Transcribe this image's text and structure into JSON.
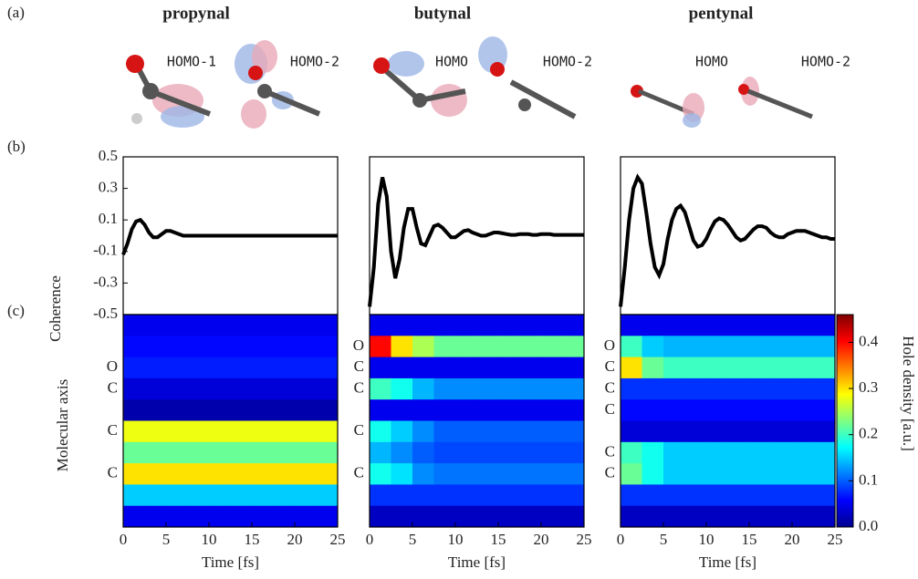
{
  "panel_labels": [
    "(a)",
    "(b)",
    "(c)"
  ],
  "molecules": [
    {
      "name": "propynal",
      "orbitals": [
        "HOMO-1",
        "HOMO-2"
      ]
    },
    {
      "name": "butynal",
      "orbitals": [
        "HOMO",
        "HOMO-2"
      ]
    },
    {
      "name": "pentynal",
      "orbitals": [
        "HOMO",
        "HOMO-2"
      ]
    }
  ],
  "chart_data": [
    {
      "type": "line",
      "ylabel": "Coherence",
      "color": "#000000",
      "xlim": [
        0,
        25
      ],
      "ylim": [
        -0.5,
        0.5
      ],
      "yticks": [
        0.5,
        0.3,
        0.1,
        -0.1,
        -0.3,
        -0.5
      ],
      "x": [
        0,
        0.5,
        1,
        1.5,
        2,
        2.5,
        3,
        3.5,
        4,
        4.5,
        5,
        5.5,
        6,
        6.5,
        7,
        7.5,
        8,
        8.5,
        9,
        9.5,
        10,
        10.5,
        11,
        11.5,
        12,
        12.5,
        13,
        13.5,
        14,
        14.5,
        15,
        15.5,
        16,
        16.5,
        17,
        17.5,
        18,
        18.5,
        19,
        19.5,
        20,
        20.5,
        21,
        21.5,
        22,
        22.5,
        23,
        23.5,
        24,
        24.5,
        25
      ],
      "values": [
        -0.12,
        -0.05,
        0.04,
        0.09,
        0.1,
        0.07,
        0.02,
        -0.01,
        -0.01,
        0.01,
        0.03,
        0.03,
        0.02,
        0.01,
        0,
        0,
        0,
        0,
        0,
        0,
        0,
        0,
        0,
        0,
        0,
        0,
        0,
        0,
        0,
        0,
        0,
        0,
        0,
        0,
        0,
        0,
        0,
        0,
        0,
        0,
        0,
        0,
        0,
        0,
        0,
        0,
        0,
        0,
        0,
        0,
        0
      ]
    },
    {
      "type": "line",
      "color": "#000000",
      "xlim": [
        0,
        25
      ],
      "ylim": [
        -0.5,
        0.5
      ],
      "x": [
        0,
        0.5,
        1,
        1.5,
        2,
        2.5,
        3,
        3.5,
        4,
        4.5,
        5,
        5.5,
        6,
        6.5,
        7,
        7.5,
        8,
        8.5,
        9,
        9.5,
        10,
        10.5,
        11,
        11.5,
        12,
        12.5,
        13,
        13.5,
        14,
        14.5,
        15,
        15.5,
        16,
        16.5,
        17,
        17.5,
        18,
        18.5,
        19,
        19.5,
        20,
        20.5,
        21,
        21.5,
        22,
        22.5,
        23,
        23.5,
        24,
        24.5,
        25
      ],
      "values": [
        -0.45,
        -0.2,
        0.2,
        0.37,
        0.25,
        -0.1,
        -0.27,
        -0.15,
        0.05,
        0.17,
        0.17,
        0.05,
        -0.05,
        -0.06,
        0,
        0.06,
        0.07,
        0.05,
        0.02,
        -0.01,
        -0.01,
        0.01,
        0.03,
        0.035,
        0.02,
        0.01,
        0,
        0,
        0.01,
        0.02,
        0.02,
        0.015,
        0.01,
        0.005,
        0.005,
        0.01,
        0.01,
        0.01,
        0.005,
        0.005,
        0.01,
        0.01,
        0.01,
        0.005,
        0.005,
        0.005,
        0.005,
        0.005,
        0.005,
        0.005,
        0.005
      ]
    },
    {
      "type": "line",
      "color": "#000000",
      "xlim": [
        0,
        25
      ],
      "ylim": [
        -0.5,
        0.5
      ],
      "x": [
        0,
        0.5,
        1,
        1.5,
        2,
        2.5,
        3,
        3.5,
        4,
        4.5,
        5,
        5.5,
        6,
        6.5,
        7,
        7.5,
        8,
        8.5,
        9,
        9.5,
        10,
        10.5,
        11,
        11.5,
        12,
        12.5,
        13,
        13.5,
        14,
        14.5,
        15,
        15.5,
        16,
        16.5,
        17,
        17.5,
        18,
        18.5,
        19,
        19.5,
        20,
        20.5,
        21,
        21.5,
        22,
        22.5,
        23,
        23.5,
        24,
        24.5,
        25
      ],
      "values": [
        -0.45,
        -0.2,
        0.1,
        0.3,
        0.37,
        0.33,
        0.15,
        -0.05,
        -0.2,
        -0.25,
        -0.18,
        -0.02,
        0.1,
        0.17,
        0.19,
        0.15,
        0.06,
        -0.03,
        -0.07,
        -0.06,
        -0.02,
        0.04,
        0.09,
        0.11,
        0.1,
        0.07,
        0.03,
        -0.01,
        -0.03,
        -0.02,
        0.01,
        0.04,
        0.06,
        0.06,
        0.05,
        0.02,
        0,
        -0.01,
        -0.01,
        0.01,
        0.02,
        0.03,
        0.03,
        0.03,
        0.02,
        0.01,
        0,
        -0.01,
        -0.01,
        -0.02,
        -0.02
      ]
    },
    {
      "type": "heatmap",
      "ylabel": "Molecular axis",
      "xlabel": "Time [fs]",
      "xlim": [
        0,
        25
      ],
      "xticks": [
        0,
        5,
        10,
        15,
        20,
        25
      ],
      "clim": [
        0,
        0.46
      ],
      "xbins": [
        0,
        2.5,
        5,
        7.5,
        10,
        12.5,
        15,
        17.5,
        20,
        22.5,
        25
      ],
      "rows": [
        null,
        null,
        "O",
        "C",
        null,
        "C",
        null,
        "C",
        null,
        null
      ],
      "z": [
        [
          0.05,
          0.05,
          0.05,
          0.05,
          0.05,
          0.05,
          0.05,
          0.05,
          0.05,
          0.05
        ],
        [
          0.06,
          0.06,
          0.06,
          0.06,
          0.06,
          0.06,
          0.06,
          0.06,
          0.06,
          0.06
        ],
        [
          0.07,
          0.07,
          0.07,
          0.07,
          0.07,
          0.07,
          0.07,
          0.07,
          0.07,
          0.07
        ],
        [
          0.04,
          0.04,
          0.04,
          0.04,
          0.04,
          0.04,
          0.04,
          0.04,
          0.04,
          0.04
        ],
        [
          0.02,
          0.02,
          0.02,
          0.02,
          0.02,
          0.02,
          0.02,
          0.02,
          0.02,
          0.02
        ],
        [
          0.28,
          0.28,
          0.28,
          0.28,
          0.28,
          0.28,
          0.28,
          0.28,
          0.28,
          0.28
        ],
        [
          0.22,
          0.22,
          0.22,
          0.22,
          0.22,
          0.22,
          0.22,
          0.22,
          0.22,
          0.22
        ],
        [
          0.3,
          0.3,
          0.3,
          0.3,
          0.3,
          0.3,
          0.3,
          0.3,
          0.3,
          0.3
        ],
        [
          0.15,
          0.15,
          0.15,
          0.15,
          0.15,
          0.15,
          0.15,
          0.15,
          0.15,
          0.15
        ],
        [
          0.05,
          0.05,
          0.05,
          0.05,
          0.05,
          0.05,
          0.05,
          0.05,
          0.05,
          0.05
        ]
      ]
    },
    {
      "type": "heatmap",
      "xlabel": "Time [fs]",
      "xlim": [
        0,
        25
      ],
      "xticks": [
        0,
        5,
        10,
        15,
        20,
        25
      ],
      "clim": [
        0,
        0.46
      ],
      "xbins": [
        0,
        2.5,
        5,
        7.5,
        10,
        12.5,
        15,
        17.5,
        20,
        22.5,
        25
      ],
      "rows": [
        null,
        "O",
        "C",
        "C",
        null,
        "C",
        null,
        "C",
        null,
        null
      ],
      "z": [
        [
          0.05,
          0.05,
          0.05,
          0.05,
          0.05,
          0.05,
          0.05,
          0.05,
          0.05,
          0.05
        ],
        [
          0.4,
          0.3,
          0.25,
          0.22,
          0.22,
          0.22,
          0.22,
          0.22,
          0.22,
          0.22
        ],
        [
          0.05,
          0.05,
          0.05,
          0.05,
          0.05,
          0.05,
          0.05,
          0.05,
          0.05,
          0.05
        ],
        [
          0.2,
          0.18,
          0.14,
          0.12,
          0.12,
          0.12,
          0.12,
          0.12,
          0.12,
          0.12
        ],
        [
          0.05,
          0.05,
          0.05,
          0.05,
          0.05,
          0.05,
          0.05,
          0.05,
          0.05,
          0.05
        ],
        [
          0.18,
          0.15,
          0.12,
          0.1,
          0.1,
          0.1,
          0.1,
          0.1,
          0.1,
          0.1
        ],
        [
          0.14,
          0.12,
          0.1,
          0.09,
          0.09,
          0.09,
          0.09,
          0.09,
          0.09,
          0.09
        ],
        [
          0.18,
          0.16,
          0.12,
          0.11,
          0.11,
          0.11,
          0.11,
          0.11,
          0.11,
          0.11
        ],
        [
          0.08,
          0.08,
          0.08,
          0.08,
          0.08,
          0.08,
          0.08,
          0.08,
          0.08,
          0.08
        ],
        [
          0.03,
          0.03,
          0.03,
          0.03,
          0.03,
          0.03,
          0.03,
          0.03,
          0.03,
          0.03
        ]
      ]
    },
    {
      "type": "heatmap",
      "xlabel": "Time [fs]",
      "xlim": [
        0,
        25
      ],
      "xticks": [
        0,
        5,
        10,
        15,
        20,
        25
      ],
      "clim": [
        0,
        0.46
      ],
      "xbins": [
        0,
        2.5,
        5,
        7.5,
        10,
        12.5,
        15,
        17.5,
        20,
        22.5,
        25
      ],
      "rows": [
        null,
        "O",
        "C",
        "C",
        "C",
        null,
        "C",
        "C",
        null,
        null
      ],
      "z": [
        [
          0.05,
          0.05,
          0.05,
          0.05,
          0.05,
          0.05,
          0.05,
          0.05,
          0.05,
          0.05
        ],
        [
          0.2,
          0.15,
          0.14,
          0.14,
          0.14,
          0.14,
          0.14,
          0.14,
          0.14,
          0.14
        ],
        [
          0.3,
          0.22,
          0.2,
          0.2,
          0.2,
          0.2,
          0.2,
          0.2,
          0.2,
          0.2
        ],
        [
          0.08,
          0.08,
          0.08,
          0.08,
          0.08,
          0.08,
          0.08,
          0.08,
          0.08,
          0.08
        ],
        [
          0.06,
          0.06,
          0.06,
          0.06,
          0.06,
          0.06,
          0.06,
          0.06,
          0.06,
          0.06
        ],
        [
          0.04,
          0.04,
          0.04,
          0.04,
          0.04,
          0.04,
          0.04,
          0.04,
          0.04,
          0.04
        ],
        [
          0.2,
          0.18,
          0.15,
          0.15,
          0.15,
          0.15,
          0.15,
          0.15,
          0.15,
          0.15
        ],
        [
          0.22,
          0.18,
          0.15,
          0.15,
          0.15,
          0.15,
          0.15,
          0.15,
          0.15,
          0.15
        ],
        [
          0.08,
          0.08,
          0.08,
          0.08,
          0.08,
          0.08,
          0.08,
          0.08,
          0.08,
          0.08
        ],
        [
          0.03,
          0.03,
          0.03,
          0.03,
          0.03,
          0.03,
          0.03,
          0.03,
          0.03,
          0.03
        ]
      ],
      "colorbar": {
        "label": "Hole density [a.u.]",
        "ticks": [
          {
            "value": 0,
            "label": "0.0"
          },
          0.1,
          0.2,
          0.3,
          0.4
        ]
      }
    }
  ]
}
